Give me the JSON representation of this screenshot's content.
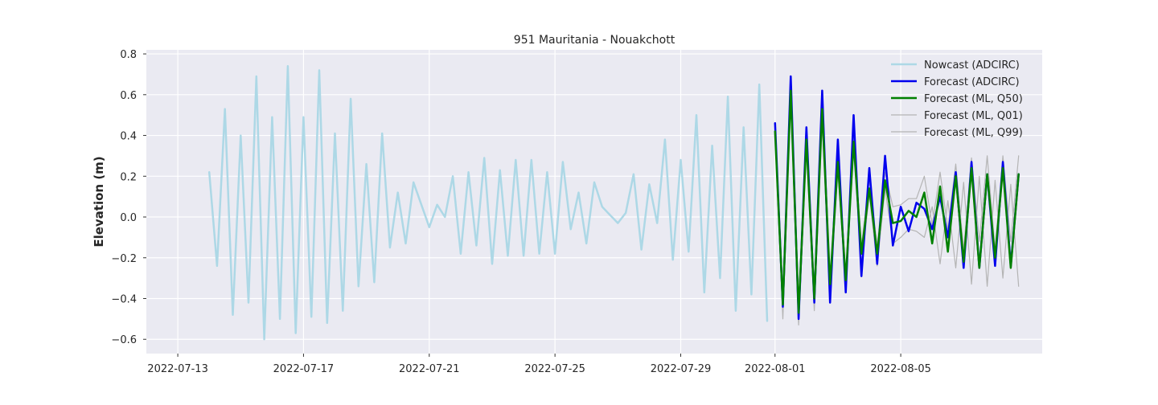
{
  "chart_data": {
    "type": "line",
    "title": "951 Mauritania - Nouakchott",
    "xlabel": "",
    "ylabel": "Elevation (m)",
    "xlim": [
      "2022-07-12T00:00",
      "2022-08-09T12:00"
    ],
    "ylim": [
      -0.67,
      0.82
    ],
    "x_ticks": [
      "2022-07-13",
      "2022-07-17",
      "2022-07-21",
      "2022-07-25",
      "2022-07-29",
      "2022-08-01",
      "2022-08-05"
    ],
    "y_ticks": [
      "0.8",
      "0.6",
      "0.4",
      "0.2",
      "0.0",
      "−0.2",
      "−0.4",
      "−0.6"
    ],
    "grid": true,
    "legend_position": "top-right",
    "series": [
      {
        "name": "Nowcast (ADCIRC)",
        "color": "#add8e6",
        "width": 2.5,
        "x": [
          "2022-07-14T00:00",
          "2022-07-14T06:00",
          "2022-07-14T12:00",
          "2022-07-14T18:00",
          "2022-07-15T00:00",
          "2022-07-15T06:00",
          "2022-07-15T12:00",
          "2022-07-15T18:00",
          "2022-07-16T00:00",
          "2022-07-16T06:00",
          "2022-07-16T12:00",
          "2022-07-16T18:00",
          "2022-07-17T00:00",
          "2022-07-17T06:00",
          "2022-07-17T12:00",
          "2022-07-17T18:00",
          "2022-07-18T00:00",
          "2022-07-18T06:00",
          "2022-07-18T12:00",
          "2022-07-18T18:00",
          "2022-07-19T00:00",
          "2022-07-19T06:00",
          "2022-07-19T12:00",
          "2022-07-19T18:00",
          "2022-07-20T00:00",
          "2022-07-20T06:00",
          "2022-07-20T12:00",
          "2022-07-21T00:00",
          "2022-07-21T06:00",
          "2022-07-21T12:00",
          "2022-07-21T18:00",
          "2022-07-22T00:00",
          "2022-07-22T06:00",
          "2022-07-22T12:00",
          "2022-07-22T18:00",
          "2022-07-23T00:00",
          "2022-07-23T06:00",
          "2022-07-23T12:00",
          "2022-07-23T18:00",
          "2022-07-24T00:00",
          "2022-07-24T06:00",
          "2022-07-24T12:00",
          "2022-07-24T18:00",
          "2022-07-25T00:00",
          "2022-07-25T06:00",
          "2022-07-25T12:00",
          "2022-07-25T18:00",
          "2022-07-26T00:00",
          "2022-07-26T06:00",
          "2022-07-26T12:00",
          "2022-07-26T18:00",
          "2022-07-27T00:00",
          "2022-07-27T06:00",
          "2022-07-27T12:00",
          "2022-07-27T18:00",
          "2022-07-28T00:00",
          "2022-07-28T06:00",
          "2022-07-28T12:00",
          "2022-07-28T18:00",
          "2022-07-29T00:00",
          "2022-07-29T06:00",
          "2022-07-29T12:00",
          "2022-07-29T18:00",
          "2022-07-30T00:00",
          "2022-07-30T06:00",
          "2022-07-30T12:00",
          "2022-07-30T18:00",
          "2022-07-31T00:00",
          "2022-07-31T06:00",
          "2022-07-31T12:00",
          "2022-07-31T18:00"
        ],
        "y": [
          0.22,
          -0.24,
          0.53,
          -0.48,
          0.4,
          -0.42,
          0.69,
          -0.6,
          0.49,
          -0.5,
          0.74,
          -0.57,
          0.49,
          -0.49,
          0.72,
          -0.52,
          0.41,
          -0.46,
          0.58,
          -0.34,
          0.26,
          -0.32,
          0.41,
          -0.15,
          0.12,
          -0.13,
          0.17,
          -0.05,
          0.06,
          0.0,
          0.2,
          -0.18,
          0.22,
          -0.14,
          0.29,
          -0.23,
          0.23,
          -0.19,
          0.28,
          -0.19,
          0.28,
          -0.18,
          0.22,
          -0.18,
          0.27,
          -0.06,
          0.12,
          -0.13,
          0.17,
          0.05,
          0.01,
          -0.03,
          0.02,
          0.21,
          -0.16,
          0.16,
          -0.03,
          0.38,
          -0.21,
          0.28,
          -0.17,
          0.5,
          -0.37,
          0.35,
          -0.3,
          0.59,
          -0.46,
          0.44,
          -0.38,
          0.65,
          -0.51
        ]
      },
      {
        "name": "Forecast (ML, Q01)",
        "color": "#b4b4b4",
        "width": 1.2,
        "x": [
          "2022-08-01T00:00",
          "2022-08-01T06:00",
          "2022-08-01T12:00",
          "2022-08-01T18:00",
          "2022-08-02T00:00",
          "2022-08-02T06:00",
          "2022-08-02T12:00",
          "2022-08-02T18:00",
          "2022-08-03T00:00",
          "2022-08-03T06:00",
          "2022-08-03T12:00",
          "2022-08-03T18:00",
          "2022-08-04T00:00",
          "2022-08-04T06:00",
          "2022-08-04T12:00",
          "2022-08-04T18:00",
          "2022-08-05T00:00",
          "2022-08-05T06:00",
          "2022-08-05T12:00",
          "2022-08-05T18:00",
          "2022-08-06T00:00",
          "2022-08-06T06:00",
          "2022-08-06T12:00",
          "2022-08-06T18:00",
          "2022-08-07T00:00",
          "2022-08-07T06:00",
          "2022-08-07T12:00",
          "2022-08-07T18:00",
          "2022-08-08T00:00",
          "2022-08-08T06:00",
          "2022-08-08T12:00",
          "2022-08-08T18:00"
        ],
        "y": [
          0.4,
          -0.5,
          0.58,
          -0.53,
          0.33,
          -0.46,
          0.46,
          -0.4,
          0.23,
          -0.34,
          0.33,
          -0.24,
          0.11,
          -0.24,
          0.14,
          -0.13,
          -0.1,
          -0.06,
          -0.07,
          -0.1,
          0.05,
          -0.23,
          0.08,
          -0.25,
          0.17,
          -0.33,
          0.2,
          -0.34,
          0.18,
          -0.3,
          0.16,
          -0.34
        ]
      },
      {
        "name": "Forecast (ML, Q99)",
        "color": "#b4b4b4",
        "width": 1.2,
        "x": [
          "2022-08-01T00:00",
          "2022-08-01T06:00",
          "2022-08-01T12:00",
          "2022-08-01T18:00",
          "2022-08-02T00:00",
          "2022-08-02T06:00",
          "2022-08-02T12:00",
          "2022-08-02T18:00",
          "2022-08-03T00:00",
          "2022-08-03T06:00",
          "2022-08-03T12:00",
          "2022-08-03T18:00",
          "2022-08-04T00:00",
          "2022-08-04T06:00",
          "2022-08-04T12:00",
          "2022-08-04T18:00",
          "2022-08-05T00:00",
          "2022-08-05T06:00",
          "2022-08-05T12:00",
          "2022-08-05T18:00",
          "2022-08-06T00:00",
          "2022-08-06T06:00",
          "2022-08-06T12:00",
          "2022-08-06T18:00",
          "2022-08-07T00:00",
          "2022-08-07T06:00",
          "2022-08-07T12:00",
          "2022-08-07T18:00",
          "2022-08-08T00:00",
          "2022-08-08T06:00",
          "2022-08-08T12:00",
          "2022-08-08T18:00"
        ],
        "y": [
          0.45,
          -0.38,
          0.66,
          -0.43,
          0.4,
          -0.38,
          0.55,
          -0.32,
          0.29,
          -0.28,
          0.4,
          -0.14,
          0.18,
          -0.14,
          0.22,
          0.05,
          0.06,
          0.09,
          0.09,
          0.2,
          -0.04,
          0.22,
          -0.06,
          0.26,
          -0.16,
          0.29,
          -0.12,
          0.3,
          -0.16,
          0.3,
          -0.12,
          0.3
        ]
      },
      {
        "name": "Forecast (ADCIRC)",
        "color": "#0000ee",
        "width": 2.5,
        "x": [
          "2022-08-01T00:00",
          "2022-08-01T06:00",
          "2022-08-01T12:00",
          "2022-08-01T18:00",
          "2022-08-02T00:00",
          "2022-08-02T06:00",
          "2022-08-02T12:00",
          "2022-08-02T18:00",
          "2022-08-03T00:00",
          "2022-08-03T06:00",
          "2022-08-03T12:00",
          "2022-08-03T18:00",
          "2022-08-04T00:00",
          "2022-08-04T06:00",
          "2022-08-04T12:00",
          "2022-08-04T18:00",
          "2022-08-05T00:00",
          "2022-08-05T06:00",
          "2022-08-05T12:00",
          "2022-08-05T18:00",
          "2022-08-06T00:00",
          "2022-08-06T06:00",
          "2022-08-06T12:00",
          "2022-08-06T18:00",
          "2022-08-07T00:00",
          "2022-08-07T06:00",
          "2022-08-07T12:00",
          "2022-08-07T18:00",
          "2022-08-08T00:00",
          "2022-08-08T06:00",
          "2022-08-08T12:00",
          "2022-08-08T18:00"
        ],
        "y": [
          0.46,
          -0.44,
          0.69,
          -0.5,
          0.44,
          -0.42,
          0.62,
          -0.42,
          0.38,
          -0.37,
          0.5,
          -0.29,
          0.24,
          -0.23,
          0.3,
          -0.14,
          0.05,
          -0.07,
          0.07,
          0.04,
          -0.06,
          0.1,
          -0.1,
          0.22,
          -0.25,
          0.27,
          -0.25,
          0.21,
          -0.24,
          0.27,
          -0.24,
          0.21
        ]
      },
      {
        "name": "Forecast (ML, Q50)",
        "color": "#008000",
        "width": 2.5,
        "x": [
          "2022-08-01T00:00",
          "2022-08-01T06:00",
          "2022-08-01T12:00",
          "2022-08-01T18:00",
          "2022-08-02T00:00",
          "2022-08-02T06:00",
          "2022-08-02T12:00",
          "2022-08-02T18:00",
          "2022-08-03T00:00",
          "2022-08-03T06:00",
          "2022-08-03T12:00",
          "2022-08-03T18:00",
          "2022-08-04T00:00",
          "2022-08-04T06:00",
          "2022-08-04T12:00",
          "2022-08-04T18:00",
          "2022-08-05T00:00",
          "2022-08-05T06:00",
          "2022-08-05T12:00",
          "2022-08-05T18:00",
          "2022-08-06T00:00",
          "2022-08-06T06:00",
          "2022-08-06T12:00",
          "2022-08-06T18:00",
          "2022-08-07T00:00",
          "2022-08-07T06:00",
          "2022-08-07T12:00",
          "2022-08-07T18:00",
          "2022-08-08T00:00",
          "2022-08-08T06:00",
          "2022-08-08T12:00",
          "2022-08-08T18:00"
        ],
        "y": [
          0.42,
          -0.43,
          0.62,
          -0.47,
          0.38,
          -0.4,
          0.53,
          -0.33,
          0.27,
          -0.31,
          0.37,
          -0.18,
          0.14,
          -0.18,
          0.18,
          -0.03,
          -0.02,
          0.03,
          0.0,
          0.12,
          -0.13,
          0.15,
          -0.17,
          0.2,
          -0.22,
          0.24,
          -0.25,
          0.21,
          -0.2,
          0.24,
          -0.25,
          0.21
        ]
      }
    ],
    "legend_order": [
      0,
      3,
      4,
      1,
      2
    ]
  }
}
